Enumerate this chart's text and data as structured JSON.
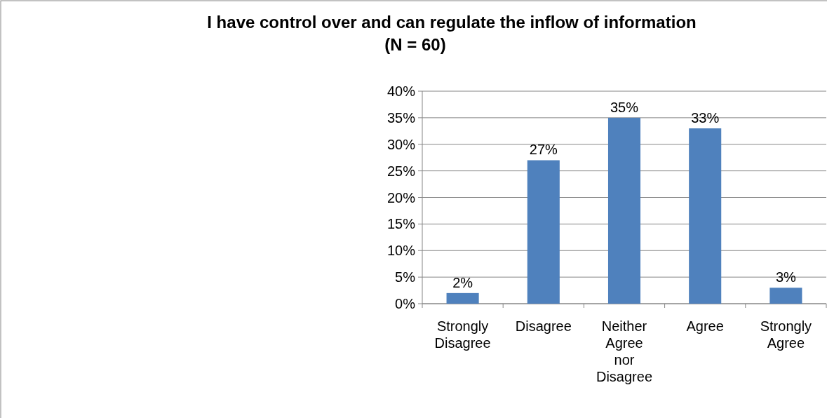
{
  "chart_data": {
    "type": "bar",
    "title": "I have control over and can regulate the inflow of information",
    "subtitle": "(N = 60)",
    "categories": [
      "Strongly Disagree",
      "Disagree",
      "Neither Agree nor Disagree",
      "Agree",
      "Strongly Agree"
    ],
    "values": [
      2,
      27,
      35,
      33,
      3
    ],
    "color": "#4f81bd",
    "value_labels": [
      "2%",
      "27%",
      "35%",
      "33%",
      "3%"
    ],
    "ylim": [
      0,
      40
    ],
    "yticks": [
      {
        "value": 0,
        "label": "0%"
      },
      {
        "value": 5,
        "label": "5%"
      },
      {
        "value": 10,
        "label": "10%"
      },
      {
        "value": 15,
        "label": "15%"
      },
      {
        "value": 20,
        "label": "20%"
      },
      {
        "value": 25,
        "label": "25%"
      },
      {
        "value": 30,
        "label": "30%"
      },
      {
        "value": 35,
        "label": "35%"
      },
      {
        "value": 40,
        "label": "40%"
      }
    ],
    "grid": "y"
  }
}
